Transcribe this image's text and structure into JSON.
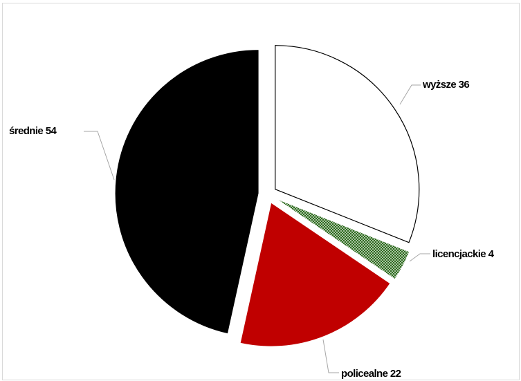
{
  "chart_data": {
    "type": "pie",
    "title": "",
    "slices": [
      {
        "label": "wyższe",
        "value": 36,
        "display": "wyższe 36",
        "color": "#ffffff",
        "pattern": "none"
      },
      {
        "label": "licencjackie",
        "value": 4,
        "display": "licencjackie 4",
        "color": "#2e6b1f",
        "pattern": "dotted"
      },
      {
        "label": "policealne",
        "value": 22,
        "display": "policealne 22",
        "color": "#c00000",
        "pattern": "none"
      },
      {
        "label": "średnie",
        "value": 54,
        "display": "średnie 54",
        "color": "#000000",
        "pattern": "none"
      }
    ],
    "exploded": true,
    "legend": "none"
  }
}
